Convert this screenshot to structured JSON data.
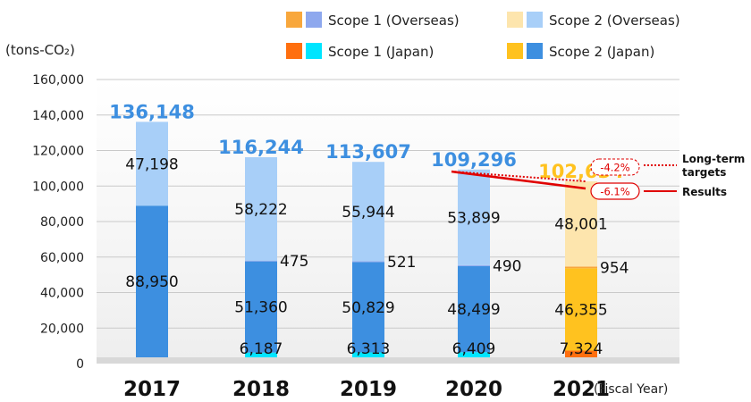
{
  "chart_data": {
    "type": "bar",
    "stacked": true,
    "title": "",
    "ylabel": "(tons-CO₂)",
    "xlabel": "(Fiscal Year)",
    "ylim": [
      0,
      160000
    ],
    "yticks": [
      0,
      20000,
      40000,
      60000,
      80000,
      100000,
      120000,
      140000,
      160000
    ],
    "ytick_labels": [
      "0",
      "20,000",
      "40,000",
      "60,000",
      "80,000",
      "100,000",
      "120,000",
      "140,000",
      "160,000"
    ],
    "grid": true,
    "legend_position": "top-right",
    "categories": [
      "2017",
      "2018",
      "2019",
      "2020",
      "2021"
    ],
    "series": [
      {
        "key": "s1j",
        "name": "Scope 1 (Japan)",
        "values": [
          0,
          6187,
          6313,
          6409,
          7324
        ],
        "colors": [
          "#00e5ff",
          "#00e5ff",
          "#00e5ff",
          "#00e5ff",
          "#ff6f0f"
        ]
      },
      {
        "key": "s2j",
        "name": "Scope 2 (Japan)",
        "values": [
          88950,
          51360,
          50829,
          48499,
          46355
        ],
        "colors": [
          "#3d8fe0",
          "#3d8fe0",
          "#3d8fe0",
          "#3d8fe0",
          "#ffc21f"
        ]
      },
      {
        "key": "s1o",
        "name": "Scope 1 (Overseas)",
        "values": [
          0,
          475,
          521,
          490,
          954
        ],
        "colors": [
          "#8ea8ee",
          "#8ea8ee",
          "#8ea8ee",
          "#8ea8ee",
          "#f8a73c"
        ]
      },
      {
        "key": "s2o",
        "name": "Scope 2 (Overseas)",
        "values": [
          47198,
          58222,
          55944,
          53899,
          48001
        ],
        "colors": [
          "#a8cff8",
          "#a8cff8",
          "#a8cff8",
          "#a8cff8",
          "#fde5ad"
        ]
      }
    ],
    "segment_labels": [
      {
        "category": "2017",
        "series": "s2o",
        "text": "47,198"
      },
      {
        "category": "2017",
        "series": "s2j",
        "text": "88,950"
      },
      {
        "category": "2018",
        "series": "s2o",
        "text": "58,222"
      },
      {
        "category": "2018",
        "series": "s1o",
        "text": "475"
      },
      {
        "category": "2018",
        "series": "s2j",
        "text": "51,360"
      },
      {
        "category": "2018",
        "series": "s1j",
        "text": "6,187"
      },
      {
        "category": "2019",
        "series": "s2o",
        "text": "55,944"
      },
      {
        "category": "2019",
        "series": "s1o",
        "text": "521"
      },
      {
        "category": "2019",
        "series": "s2j",
        "text": "50,829"
      },
      {
        "category": "2019",
        "series": "s1j",
        "text": "6,313"
      },
      {
        "category": "2020",
        "series": "s2o",
        "text": "53,899"
      },
      {
        "category": "2020",
        "series": "s1o",
        "text": "490"
      },
      {
        "category": "2020",
        "series": "s2j",
        "text": "48,499"
      },
      {
        "category": "2020",
        "series": "s1j",
        "text": "6,409"
      },
      {
        "category": "2021",
        "series": "s2o",
        "text": "48,001"
      },
      {
        "category": "2021",
        "series": "s1o",
        "text": "954"
      },
      {
        "category": "2021",
        "series": "s2j",
        "text": "46,355"
      },
      {
        "category": "2021",
        "series": "s1j",
        "text": "7,324"
      }
    ],
    "totals": [
      {
        "category": "2017",
        "value": 136148,
        "text": "136,148",
        "color": "#3d8fe0"
      },
      {
        "category": "2018",
        "value": 116244,
        "text": "116,244",
        "color": "#3d8fe0"
      },
      {
        "category": "2019",
        "value": 113607,
        "text": "113,607",
        "color": "#3d8fe0"
      },
      {
        "category": "2020",
        "value": 109296,
        "text": "109,296",
        "color": "#3d8fe0"
      },
      {
        "category": "2021",
        "value": 102634,
        "text": "102,634",
        "color": "#ffc21f"
      }
    ],
    "legend": [
      {
        "text": "Scope 1 (Overseas)",
        "colors": [
          "#f8a73c",
          "#8ea8ee"
        ]
      },
      {
        "text": "Scope 2 (Overseas)",
        "colors": [
          "#fde5ad",
          "#a8cff8"
        ]
      },
      {
        "text": "Scope 1 (Japan)",
        "colors": [
          "#ff6f0f",
          "#00e5ff"
        ]
      },
      {
        "text": "Scope 2 (Japan)",
        "colors": [
          "#ffc21f",
          "#3d8fe0"
        ]
      }
    ],
    "annotations": {
      "target_label": "-4.2%",
      "result_label": "-6.1%",
      "long_term_label_line1": "Long-term",
      "long_term_label_line2": "targets",
      "results_label": "Results",
      "target_line_style": "dotted",
      "result_line_style": "solid",
      "line_color": "#e00000",
      "from_category": "2020",
      "to_category": "2021"
    }
  }
}
